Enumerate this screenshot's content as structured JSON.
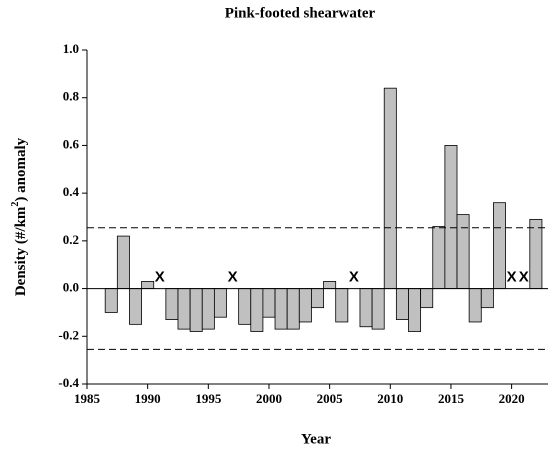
{
  "chart_data": {
    "type": "bar",
    "title": "Pink-footed shearwater",
    "x_label": "Year",
    "y_label": [
      "Density (#/km",
      "2",
      ") anomaly"
    ],
    "x": [
      1987,
      1988,
      1989,
      1990,
      1991,
      1992,
      1993,
      1994,
      1995,
      1996,
      1997,
      1998,
      1999,
      2000,
      2001,
      2002,
      2003,
      2004,
      2005,
      2006,
      2007,
      2008,
      2009,
      2010,
      2011,
      2012,
      2013,
      2014,
      2015,
      2016,
      2017,
      2018,
      2019,
      2020,
      2021,
      2022
    ],
    "values": [
      -0.1,
      0.22,
      -0.15,
      0.03,
      null,
      -0.13,
      -0.17,
      -0.18,
      -0.17,
      -0.12,
      null,
      -0.15,
      -0.18,
      -0.12,
      -0.17,
      -0.17,
      -0.14,
      -0.08,
      0.03,
      -0.14,
      null,
      -0.16,
      -0.17,
      0.84,
      -0.13,
      -0.18,
      -0.08,
      0.26,
      0.6,
      0.31,
      -0.14,
      -0.08,
      0.36,
      null,
      null,
      0.29
    ],
    "missing_label": "X",
    "color": "#c0c0c0",
    "xlim": [
      1985,
      2023
    ],
    "xticks": [
      1985,
      1990,
      1995,
      2000,
      2005,
      2010,
      2015,
      2020
    ],
    "ylim": [
      -0.4,
      1.0
    ],
    "yticks": [
      {
        "value": -0.4,
        "label": "-0.4"
      },
      -0.2,
      {
        "value": 0,
        "label": "0.0"
      },
      0.2,
      0.4,
      0.6,
      0.8,
      {
        "value": 1.0,
        "label": "1.0"
      }
    ],
    "hlines": [
      0.255,
      -0.255
    ]
  }
}
